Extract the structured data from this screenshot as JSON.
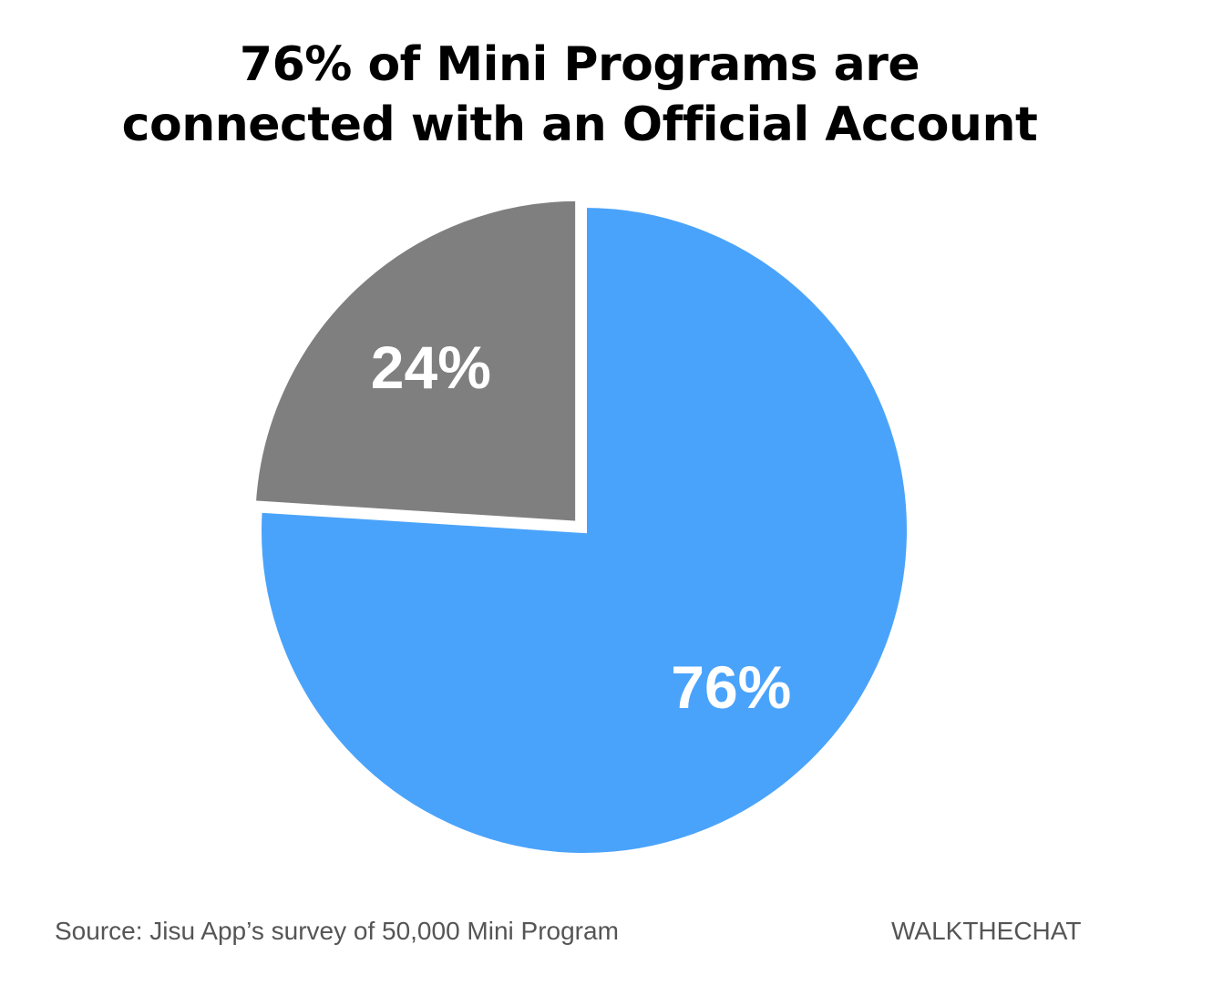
{
  "title": {
    "line1": "76% of Mini Programs are",
    "line2": "connected with an Official Account"
  },
  "chart_data": {
    "type": "pie",
    "slices": [
      {
        "label": "76%",
        "value": 76,
        "color": "#4AA3FB"
      },
      {
        "label": "24%",
        "value": 24,
        "color": "#7F7F7F"
      }
    ],
    "exploded_slice": "24%"
  },
  "footer": {
    "source": "Source: Jisu App’s survey of 50,000 Mini Program",
    "brand": "WALKTHECHAT"
  }
}
